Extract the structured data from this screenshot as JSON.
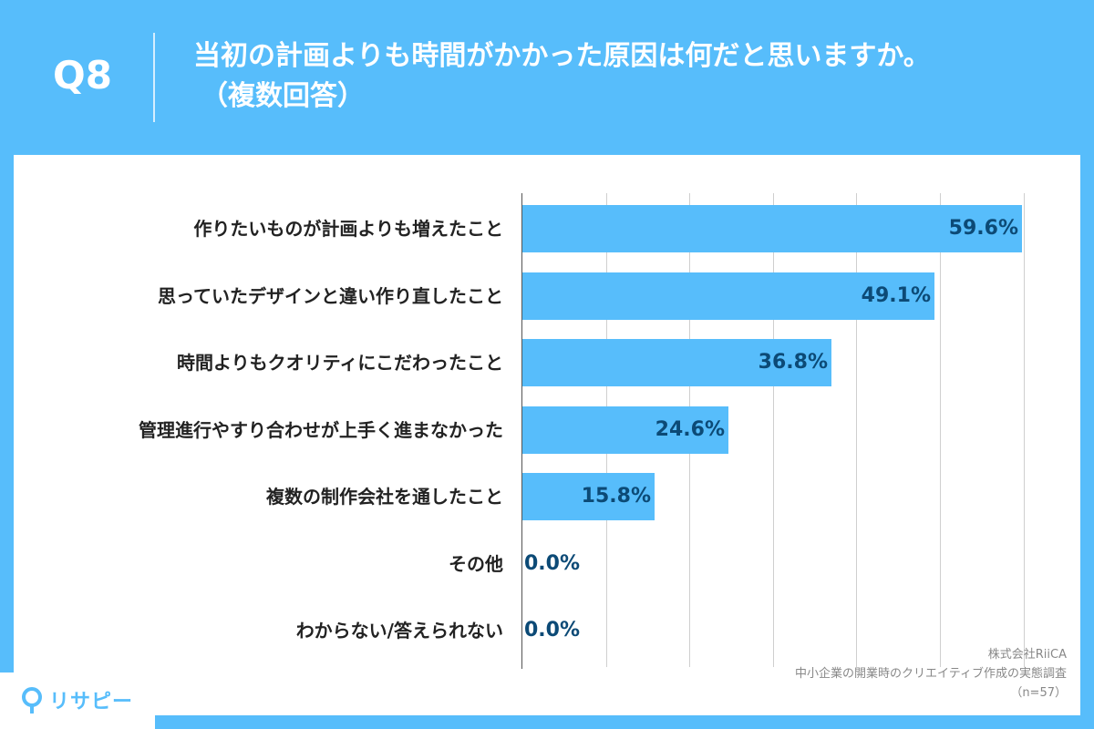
{
  "header": {
    "q_number": "Q8",
    "title_line1": "当初の計画よりも時間がかかった原因は何だと思いますか。",
    "title_line2": "（複数回答）"
  },
  "chart_data": {
    "type": "bar",
    "orientation": "horizontal",
    "categories": [
      "作りたいものが計画よりも増えたこと",
      "思っていたデザインと違い作り直したこと",
      "時間よりもクオリティにこだわったこと",
      "管理進行やすり合わせが上手く進まなかった",
      "複数の制作会社を通したこと",
      "その他",
      "わからない/答えられない"
    ],
    "values": [
      59.6,
      49.1,
      36.8,
      24.6,
      15.8,
      0.0,
      0.0
    ],
    "value_labels": [
      "59.6%",
      "49.1%",
      "36.8%",
      "24.6%",
      "15.8%",
      "0.0%",
      "0.0%"
    ],
    "xlim": [
      0,
      60
    ],
    "gridlines": [
      10,
      20,
      30,
      40,
      50,
      60
    ],
    "grid": true,
    "bar_color": "#57bdfb",
    "label_color": "#0c4a76"
  },
  "footer": {
    "company": "株式会社RiiCA",
    "survey": "中小企業の開業時のクリエイティブ作成の実態調査",
    "sample": "（n=57）"
  },
  "logo": {
    "text": "リサピー",
    "icon": "map-pin-icon"
  },
  "colors": {
    "background": "#57bdfb",
    "panel": "#ffffff"
  }
}
